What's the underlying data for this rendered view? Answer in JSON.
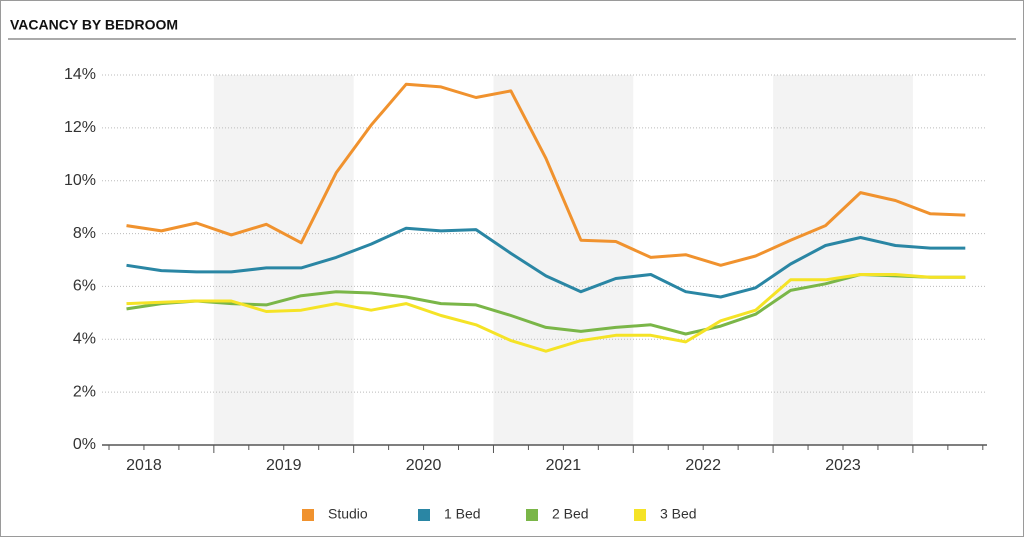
{
  "chart_data": {
    "type": "line",
    "title": "VACANCY BY BEDROOM",
    "x": [
      2018.375,
      2018.625,
      2018.875,
      2019.125,
      2019.375,
      2019.625,
      2019.875,
      2020.125,
      2020.375,
      2020.625,
      2020.875,
      2021.125,
      2021.375,
      2021.625,
      2021.875,
      2022.125,
      2022.375,
      2022.625,
      2022.875,
      2023.125,
      2023.375,
      2023.625,
      2023.875,
      2024.125,
      2024.375
    ],
    "xlim": [
      2018.2,
      2024.53
    ],
    "xticks": [
      {
        "value": 2018.5,
        "label": "2018"
      },
      {
        "value": 2019.5,
        "label": "2019"
      },
      {
        "value": 2020.5,
        "label": "2020"
      },
      {
        "value": 2021.5,
        "label": "2021"
      },
      {
        "value": 2022.5,
        "label": "2022"
      },
      {
        "value": 2023.5,
        "label": "2023"
      }
    ],
    "ylim": [
      0,
      14
    ],
    "yticks": [
      {
        "value": 0,
        "label": "0%"
      },
      {
        "value": 2,
        "label": "2%"
      },
      {
        "value": 4,
        "label": "4%"
      },
      {
        "value": 6,
        "label": "6%"
      },
      {
        "value": 8,
        "label": "8%"
      },
      {
        "value": 10,
        "label": "10%"
      },
      {
        "value": 12,
        "label": "12%"
      },
      {
        "value": 14,
        "label": "14%"
      }
    ],
    "grid": true,
    "legend": "bottom",
    "series": [
      {
        "name": "Studio",
        "color": "#f0922e",
        "values": [
          8.3,
          8.1,
          8.4,
          7.95,
          8.35,
          7.65,
          10.3,
          12.1,
          13.65,
          13.55,
          13.15,
          13.4,
          10.85,
          7.75,
          7.7,
          7.1,
          7.2,
          6.8,
          7.15,
          7.75,
          8.3,
          9.55,
          9.25,
          8.75,
          8.7
        ]
      },
      {
        "name": "1 Bed",
        "color": "#2a86a4",
        "values": [
          6.8,
          6.6,
          6.55,
          6.55,
          6.7,
          6.7,
          7.1,
          7.6,
          8.2,
          8.1,
          8.15,
          7.25,
          6.4,
          5.8,
          6.3,
          6.45,
          5.8,
          5.6,
          5.95,
          6.85,
          7.55,
          7.85,
          7.55,
          7.45,
          7.45
        ]
      },
      {
        "name": "2 Bed",
        "color": "#7ab648",
        "values": [
          5.15,
          5.35,
          5.45,
          5.35,
          5.3,
          5.65,
          5.8,
          5.75,
          5.6,
          5.35,
          5.3,
          4.9,
          4.45,
          4.3,
          4.45,
          4.55,
          4.2,
          4.5,
          4.95,
          5.85,
          6.1,
          6.45,
          6.4,
          6.35,
          6.35
        ]
      },
      {
        "name": "3 Bed",
        "color": "#f5e326",
        "values": [
          5.35,
          5.4,
          5.45,
          5.45,
          5.05,
          5.1,
          5.35,
          5.1,
          5.35,
          4.9,
          4.55,
          3.95,
          3.55,
          3.95,
          4.15,
          4.15,
          3.9,
          4.7,
          5.1,
          6.25,
          6.25,
          6.45,
          6.45,
          6.35,
          6.35
        ]
      }
    ]
  }
}
